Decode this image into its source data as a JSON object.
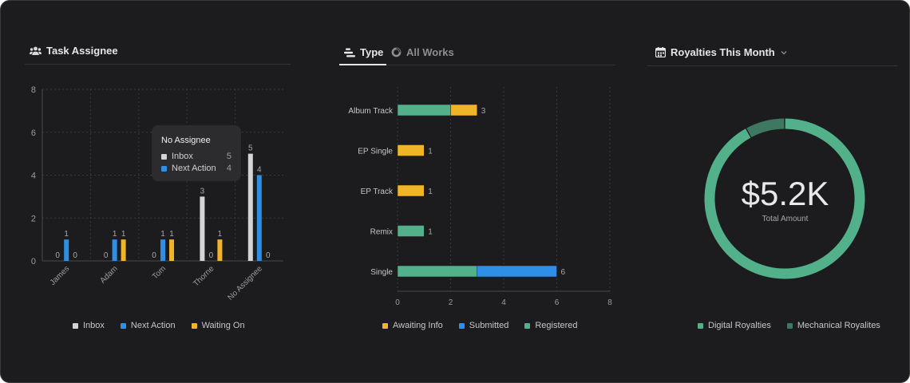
{
  "panels": {
    "assignee": {
      "title": "Task Assignee",
      "icon": "people-icon"
    },
    "type": {
      "tabs": [
        {
          "label": "Type",
          "icon": "stacked-bars-icon",
          "active": true
        },
        {
          "label": "All Works",
          "icon": "donut-icon",
          "active": false
        }
      ]
    },
    "royalties": {
      "title": "Royalties This Month",
      "icon": "calendar-icon",
      "dropdown_icon": "chevron-down-icon"
    }
  },
  "tooltip": {
    "title": "No Assignee",
    "rows": [
      {
        "label": "Inbox",
        "value": "5"
      },
      {
        "label": "Next Action",
        "value": "4"
      }
    ]
  },
  "donut": {
    "amount": "$5.2K",
    "label": "Total Amount"
  },
  "colors": {
    "inbox": "#d4d4d6",
    "next_action": "#2f8fe6",
    "waiting_on": "#f0b429",
    "registered": "#52b08a",
    "mechanical": "#3f7862"
  },
  "chart_data": [
    {
      "type": "bar",
      "title": "Task Assignee",
      "categories": [
        "James",
        "Adam",
        "Tom",
        "Thorne",
        "No Assignee"
      ],
      "series": [
        {
          "name": "Inbox",
          "values": [
            0,
            0,
            0,
            3,
            5
          ]
        },
        {
          "name": "Next Action",
          "values": [
            1,
            1,
            1,
            0,
            4
          ]
        },
        {
          "name": "Waiting On",
          "values": [
            0,
            1,
            1,
            1,
            0
          ]
        }
      ],
      "yticks": [
        0,
        2,
        4,
        6,
        8
      ],
      "ylim": [
        0,
        8
      ],
      "legend": "bottom",
      "grid": true
    },
    {
      "type": "bar",
      "orientation": "horizontal-stacked",
      "categories": [
        "Album Track",
        "EP Single",
        "EP Track",
        "Remix",
        "Single"
      ],
      "series": [
        {
          "name": "Registered",
          "values": [
            2,
            0,
            0,
            1,
            3
          ]
        },
        {
          "name": "Awaiting Info",
          "values": [
            1,
            1,
            1,
            0,
            0
          ]
        },
        {
          "name": "Submitted",
          "values": [
            0,
            0,
            0,
            0,
            3
          ]
        }
      ],
      "totals": [
        3,
        1,
        1,
        1,
        6
      ],
      "legend_order": [
        "Awaiting Info",
        "Submitted",
        "Registered"
      ],
      "xticks": [
        0,
        2,
        4,
        6,
        8
      ],
      "xlim": [
        0,
        8
      ],
      "legend": "bottom",
      "grid": true
    },
    {
      "type": "pie",
      "donut": true,
      "series": [
        {
          "name": "Digital Royalties",
          "value": 0.92
        },
        {
          "name": "Mechanical Royalites",
          "value": 0.08
        }
      ],
      "legend": "bottom"
    }
  ]
}
